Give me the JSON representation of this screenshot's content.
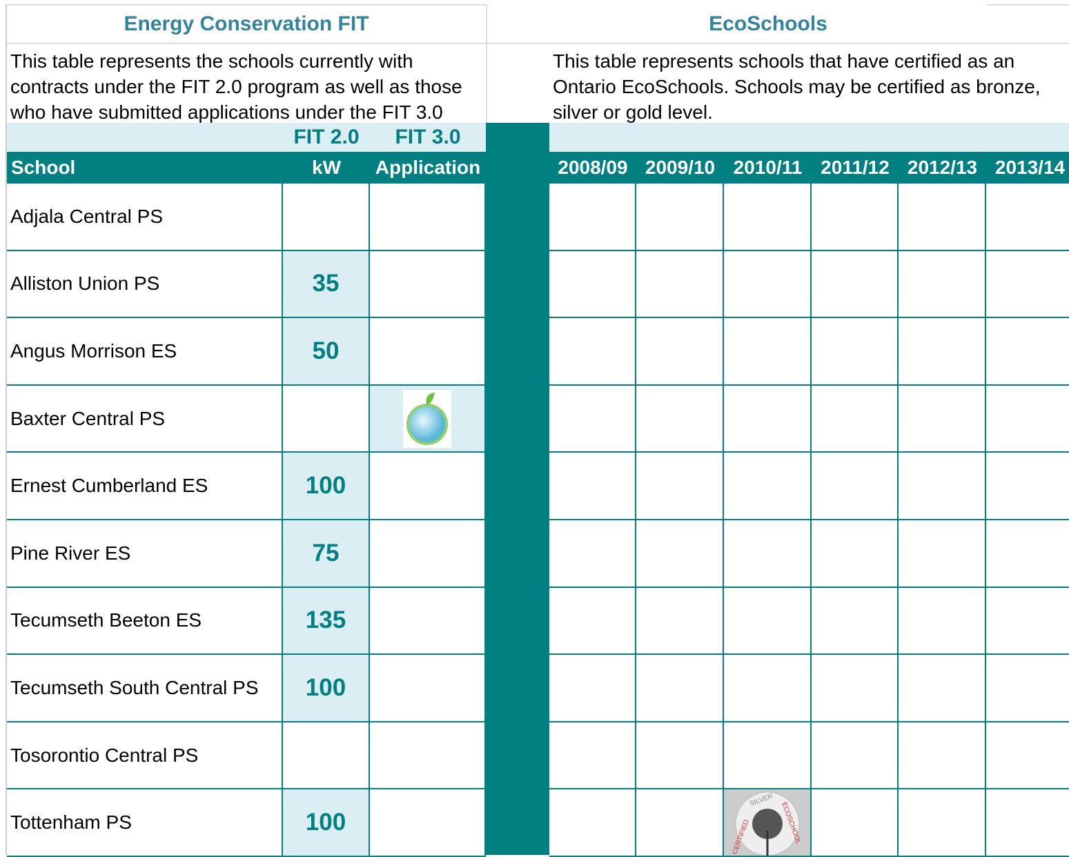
{
  "left": {
    "title": "Energy Conservation FIT",
    "description": "This table represents the schools currently with contracts under the FIT 2.0 program as well as those who have submitted applications under the FIT 3.0",
    "group_headers": [
      "FIT 2.0",
      "FIT 3.0"
    ],
    "headers": [
      "School",
      "kW",
      "Application"
    ]
  },
  "right": {
    "title": "EcoSchools",
    "description": "This table represents schools that have certified as an Ontario EcoSchools. Schools may be certified as bronze, silver or gold level.",
    "years": [
      "2008/09",
      "2009/10",
      "2010/11",
      "2011/12",
      "2012/13",
      "2013/14"
    ]
  },
  "rows": [
    {
      "school": "Adjala Central PS",
      "kw": null,
      "application": false,
      "eco": [
        null,
        null,
        null,
        null,
        null,
        null
      ]
    },
    {
      "school": "Alliston Union PS",
      "kw": 35,
      "application": false,
      "eco": [
        null,
        null,
        null,
        null,
        null,
        null
      ]
    },
    {
      "school": "Angus Morrison ES",
      "kw": 50,
      "application": false,
      "eco": [
        null,
        null,
        null,
        null,
        null,
        null
      ]
    },
    {
      "school": "Baxter Central PS",
      "kw": null,
      "application": true,
      "eco": [
        null,
        null,
        null,
        null,
        null,
        null
      ]
    },
    {
      "school": "Ernest Cumberland ES",
      "kw": 100,
      "application": false,
      "eco": [
        null,
        null,
        null,
        null,
        null,
        null
      ]
    },
    {
      "school": "Pine River ES",
      "kw": 75,
      "application": false,
      "eco": [
        null,
        null,
        null,
        null,
        null,
        null
      ]
    },
    {
      "school": "Tecumseth Beeton ES",
      "kw": 135,
      "application": false,
      "eco": [
        null,
        null,
        null,
        null,
        null,
        null
      ]
    },
    {
      "school": "Tecumseth South Central PS",
      "kw": 100,
      "application": false,
      "eco": [
        null,
        null,
        null,
        null,
        null,
        null
      ]
    },
    {
      "school": "Tosorontio Central PS",
      "kw": null,
      "application": false,
      "eco": [
        null,
        null,
        null,
        null,
        null,
        null
      ]
    },
    {
      "school": "Tottenham PS",
      "kw": 100,
      "application": false,
      "eco": [
        null,
        null,
        [
          "CERTIFIED",
          "SILVER",
          "ECOSCHOOL"
        ],
        null,
        null,
        null
      ]
    }
  ]
}
